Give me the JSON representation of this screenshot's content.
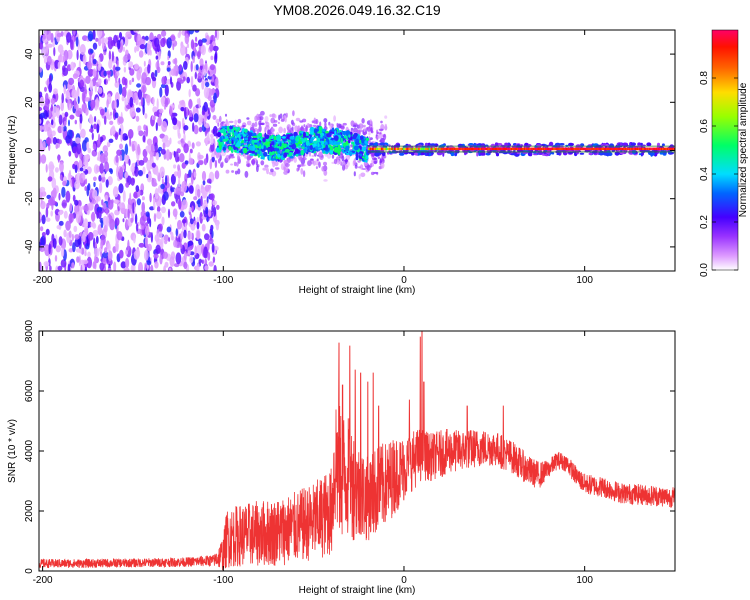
{
  "title": "YM08.2026.049.16.32.C19",
  "chart_data": [
    {
      "type": "heatmap",
      "xlabel": "Height of straight line (km)",
      "ylabel": "Frequency (Hz)",
      "xlim": [
        -202,
        150
      ],
      "ylim": [
        -50,
        50
      ],
      "x_ticks": [
        -200,
        -100,
        0,
        100
      ],
      "y_ticks": [
        40,
        20,
        0,
        -20,
        -40
      ],
      "colorbar": {
        "label": "Normalized spectral amplitude",
        "range": [
          0,
          1
        ],
        "ticks": [
          "0.0",
          "0.2",
          "0.4",
          "0.6",
          "0.8"
        ],
        "colors": [
          "#ffffff",
          "#cc66ff",
          "#7700ff",
          "#0000ff",
          "#00ccff",
          "#00ff66",
          "#ccff00",
          "#ffcc00",
          "#ff3300",
          "#ff0066"
        ]
      },
      "regions": [
        {
          "name": "broadband noise",
          "x_range": [
            -202,
            -103
          ],
          "freq_range": [
            -50,
            50
          ],
          "amplitude": 0.15
        },
        {
          "name": "scattered echo",
          "x_range": [
            -103,
            -20
          ],
          "freq_center": 3,
          "freq_halfwidth": 6,
          "amplitude": 0.4
        },
        {
          "name": "stable carrier",
          "x_range": [
            -20,
            150
          ],
          "freq_center": 0.5,
          "freq_halfwidth": 1,
          "amplitude": 0.95
        }
      ]
    },
    {
      "type": "line",
      "xlabel": "Height of straight line (km)",
      "ylabel": "SNR (10 * v/v)",
      "xlim": [
        -202,
        150
      ],
      "ylim": [
        0,
        8000
      ],
      "x_ticks": [
        -200,
        -100,
        0,
        100
      ],
      "y_ticks": [
        0,
        2000,
        4000,
        6000,
        8000
      ],
      "series": [
        {
          "name": "SNR",
          "color": "#ee3333",
          "envelope_x": [
            -202,
            -180,
            -150,
            -120,
            -105,
            -100,
            -98,
            -90,
            -80,
            -70,
            -60,
            -50,
            -40,
            -38,
            -36,
            -30,
            -25,
            -20,
            -15,
            -10,
            -5,
            0,
            5,
            10,
            15,
            20,
            25,
            30,
            40,
            50,
            60,
            70,
            75,
            80,
            85,
            90,
            95,
            100,
            110,
            120,
            130,
            140,
            150
          ],
          "envelope_y": [
            250,
            250,
            270,
            300,
            350,
            600,
            1100,
            1200,
            1250,
            1300,
            1450,
            1650,
            2000,
            3800,
            3300,
            3100,
            2600,
            2400,
            2700,
            2900,
            3200,
            3400,
            3700,
            3900,
            3800,
            3900,
            4000,
            4000,
            4100,
            4100,
            3800,
            3300,
            3200,
            3400,
            3700,
            3600,
            3200,
            2900,
            2800,
            2600,
            2550,
            2500,
            2450
          ],
          "envelope_noise": [
            150,
            150,
            150,
            160,
            200,
            600,
            1000,
            1050,
            1100,
            1150,
            1200,
            1300,
            1500,
            2500,
            2300,
            2000,
            1700,
            1400,
            1500,
            1400,
            1300,
            1100,
            1000,
            900,
            800,
            800,
            750,
            700,
            650,
            600,
            550,
            500,
            450,
            300,
            300,
            300,
            320,
            350,
            350,
            350,
            350,
            350,
            350
          ],
          "spikes": [
            {
              "x": -36,
              "y": 7600
            },
            {
              "x": -34,
              "y": 6200
            },
            {
              "x": -30,
              "y": 7500
            },
            {
              "x": -27,
              "y": 6700
            },
            {
              "x": -24,
              "y": 6600
            },
            {
              "x": -20,
              "y": 6300
            },
            {
              "x": -17,
              "y": 6600
            },
            {
              "x": -14,
              "y": 5500
            },
            {
              "x": 3,
              "y": 5700
            },
            {
              "x": 9,
              "y": 7800
            },
            {
              "x": 10,
              "y": 8400
            },
            {
              "x": 11,
              "y": 6300
            },
            {
              "x": 35,
              "y": 5500
            },
            {
              "x": 55,
              "y": 5500
            }
          ]
        }
      ]
    }
  ]
}
